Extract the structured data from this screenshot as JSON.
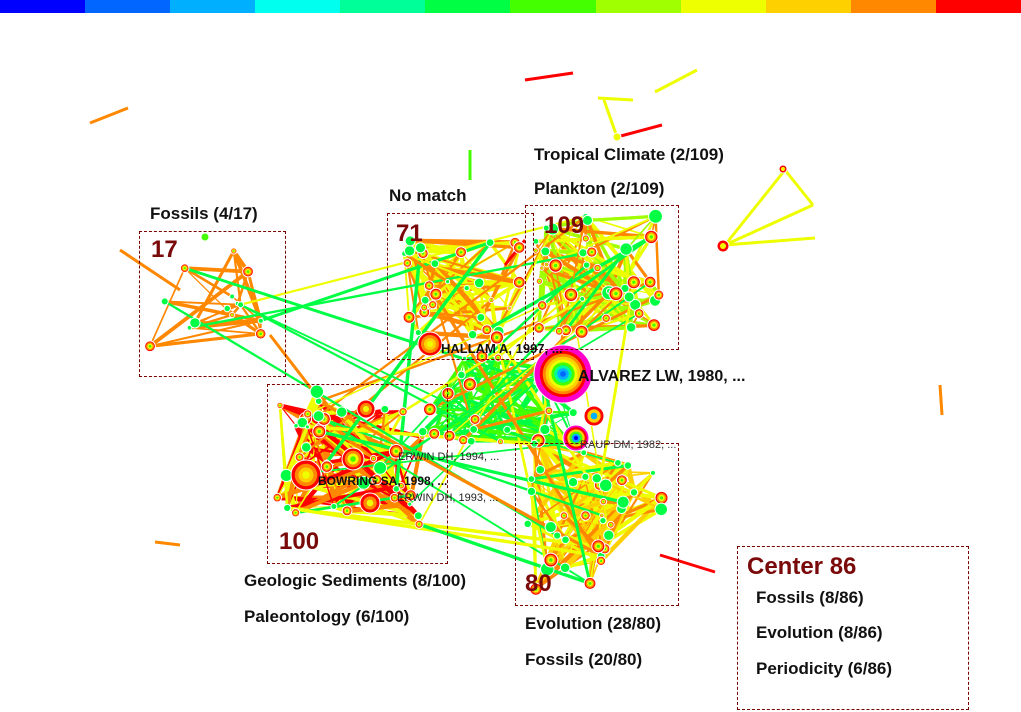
{
  "color_scale": [
    "#0000ff",
    "#0066ff",
    "#00b0ff",
    "#00ffee",
    "#00ff99",
    "#00ff44",
    "#44ff00",
    "#a0ff00",
    "#eeff00",
    "#ffd000",
    "#ff8800",
    "#ff0000"
  ],
  "clusters": [
    {
      "id": "17",
      "labels": [
        "Fossils (4/17)"
      ]
    },
    {
      "id": "71",
      "labels": [
        "No match"
      ]
    },
    {
      "id": "109",
      "labels": [
        "Tropical Climate (2/109)",
        "Plankton (2/109)"
      ]
    },
    {
      "id": "100",
      "labels": [
        "Geologic Sediments (8/100)",
        "Paleontology (6/100)"
      ]
    },
    {
      "id": "80",
      "labels": [
        "Evolution (28/80)",
        "Fossils (20/80)"
      ]
    }
  ],
  "center": {
    "title": "Center 86",
    "labels": [
      "Fossils (8/86)",
      "Evolution (8/86)",
      "Periodicity (6/86)"
    ]
  },
  "nodes": {
    "alvarez": "ALVAREZ LW, 1980, ...",
    "hallam": "HALLAM A, 1997, ...",
    "raup": "RAUP DM, 1982, ...",
    "erwin94": "ERWIN DH, 1994, ...",
    "bowring": "BOWRING SA, 1998, ...",
    "erwin93": "ERWIN DH, 1993, ..."
  }
}
